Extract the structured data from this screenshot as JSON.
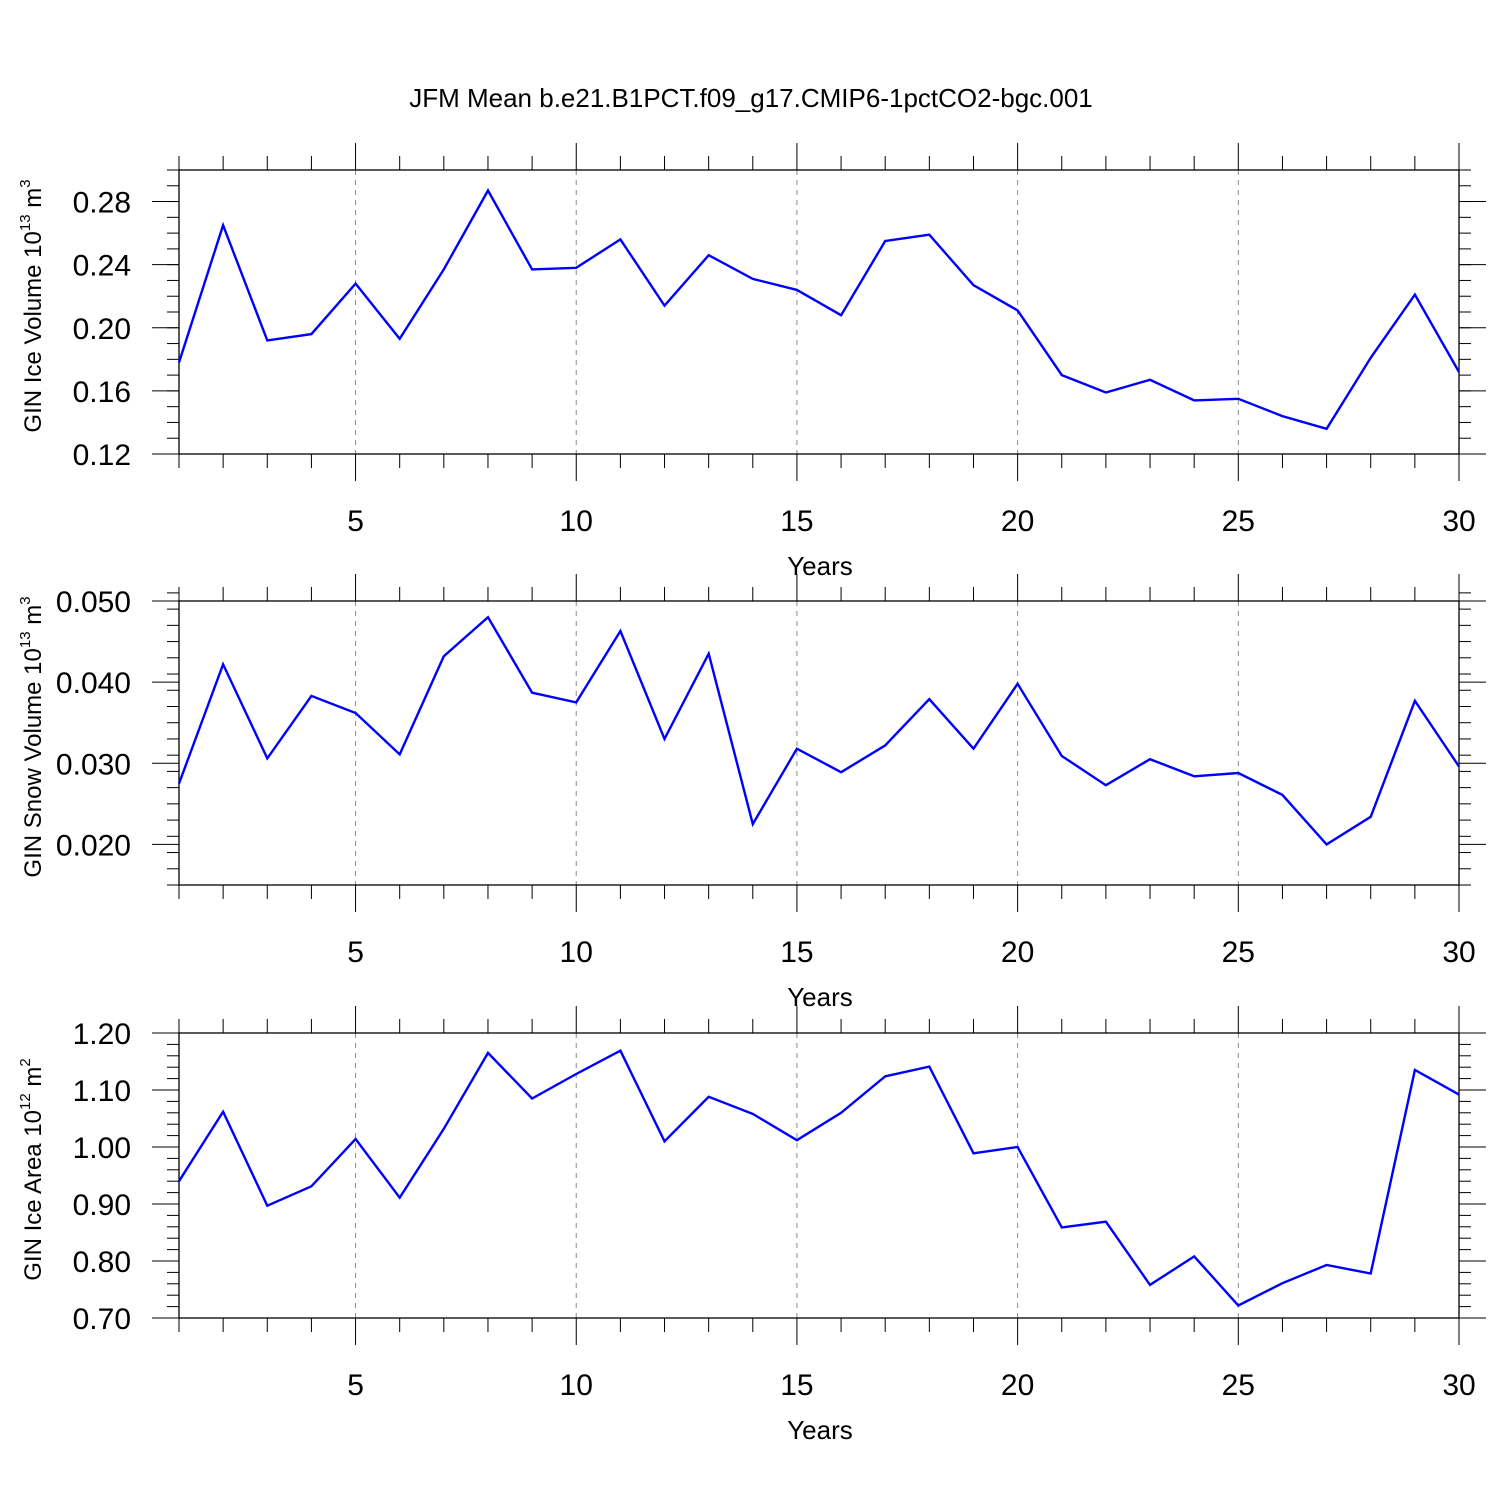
{
  "chart_data": [
    {
      "type": "line",
      "title": "JFM Mean b.e21.B1PCT.f09_g17.CMIP6-1pctCO2-bgc.001",
      "xlabel": "Years",
      "ylabel": {
        "base": "GIN Ice Volume 10",
        "exp": "13",
        "unit": " m",
        "unit_exp": "3"
      },
      "xlim": [
        1,
        30
      ],
      "ylim": [
        0.12,
        0.3
      ],
      "x_ticks": [
        5,
        10,
        15,
        20,
        25,
        30
      ],
      "y_ticks": [
        0.12,
        0.16,
        0.2,
        0.24,
        0.28
      ],
      "y_tick_labels": [
        "0.12",
        "0.16",
        "0.20",
        "0.24",
        "0.28"
      ],
      "y_minor_step": 0.01,
      "line_color": "#0000ff",
      "x": [
        1,
        2,
        3,
        4,
        5,
        6,
        7,
        8,
        9,
        10,
        11,
        12,
        13,
        14,
        15,
        16,
        17,
        18,
        19,
        20,
        21,
        22,
        23,
        24,
        25,
        26,
        27,
        28,
        29,
        30
      ],
      "values": [
        0.178,
        0.265,
        0.192,
        0.196,
        0.228,
        0.193,
        0.237,
        0.287,
        0.237,
        0.238,
        0.256,
        0.214,
        0.246,
        0.231,
        0.224,
        0.208,
        0.255,
        0.259,
        0.227,
        0.211,
        0.17,
        0.159,
        0.167,
        0.154,
        0.155,
        0.144,
        0.136,
        0.181,
        0.221,
        0.172
      ]
    },
    {
      "type": "line",
      "title": "",
      "xlabel": "Years",
      "ylabel": {
        "base": "GIN Snow Volume 10",
        "exp": "13",
        "unit": " m",
        "unit_exp": "3"
      },
      "xlim": [
        1,
        30
      ],
      "ylim": [
        0.015,
        0.05
      ],
      "x_ticks": [
        5,
        10,
        15,
        20,
        25,
        30
      ],
      "y_ticks": [
        0.02,
        0.03,
        0.04,
        0.05
      ],
      "y_tick_labels": [
        "0.020",
        "0.030",
        "0.040",
        "0.050"
      ],
      "y_minor_step": 0.002,
      "line_color": "#0000ff",
      "x": [
        1,
        2,
        3,
        4,
        5,
        6,
        7,
        8,
        9,
        10,
        11,
        12,
        13,
        14,
        15,
        16,
        17,
        18,
        19,
        20,
        21,
        22,
        23,
        24,
        25,
        26,
        27,
        28,
        29,
        30
      ],
      "values": [
        0.0275,
        0.0422,
        0.0306,
        0.0383,
        0.0362,
        0.0311,
        0.0432,
        0.048,
        0.0387,
        0.0375,
        0.0463,
        0.033,
        0.0435,
        0.0225,
        0.0318,
        0.0289,
        0.0322,
        0.0379,
        0.0318,
        0.0398,
        0.0309,
        0.0273,
        0.0305,
        0.0284,
        0.0288,
        0.0261,
        0.02,
        0.0234,
        0.0377,
        0.0296
      ]
    },
    {
      "type": "line",
      "title": "",
      "xlabel": "Years",
      "ylabel": {
        "base": "GIN Ice Area 10",
        "exp": "12",
        "unit": " m",
        "unit_exp": "2"
      },
      "xlim": [
        1,
        30
      ],
      "ylim": [
        0.7,
        1.2
      ],
      "x_ticks": [
        5,
        10,
        15,
        20,
        25,
        30
      ],
      "y_ticks": [
        0.7,
        0.8,
        0.9,
        1.0,
        1.1,
        1.2
      ],
      "y_tick_labels": [
        "0.70",
        "0.80",
        "0.90",
        "1.00",
        "1.10",
        "1.20"
      ],
      "y_minor_step": 0.02,
      "line_color": "#0000ff",
      "x": [
        1,
        2,
        3,
        4,
        5,
        6,
        7,
        8,
        9,
        10,
        11,
        12,
        13,
        14,
        15,
        16,
        17,
        18,
        19,
        20,
        21,
        22,
        23,
        24,
        25,
        26,
        27,
        28,
        29,
        30
      ],
      "values": [
        0.94,
        1.062,
        0.897,
        0.931,
        1.014,
        0.911,
        1.032,
        1.165,
        1.085,
        1.128,
        1.169,
        1.01,
        1.088,
        1.058,
        1.012,
        1.06,
        1.124,
        1.141,
        0.989,
        1.0,
        0.859,
        0.869,
        0.758,
        0.808,
        0.722,
        0.761,
        0.793,
        0.778,
        1.135,
        1.092
      ]
    }
  ]
}
